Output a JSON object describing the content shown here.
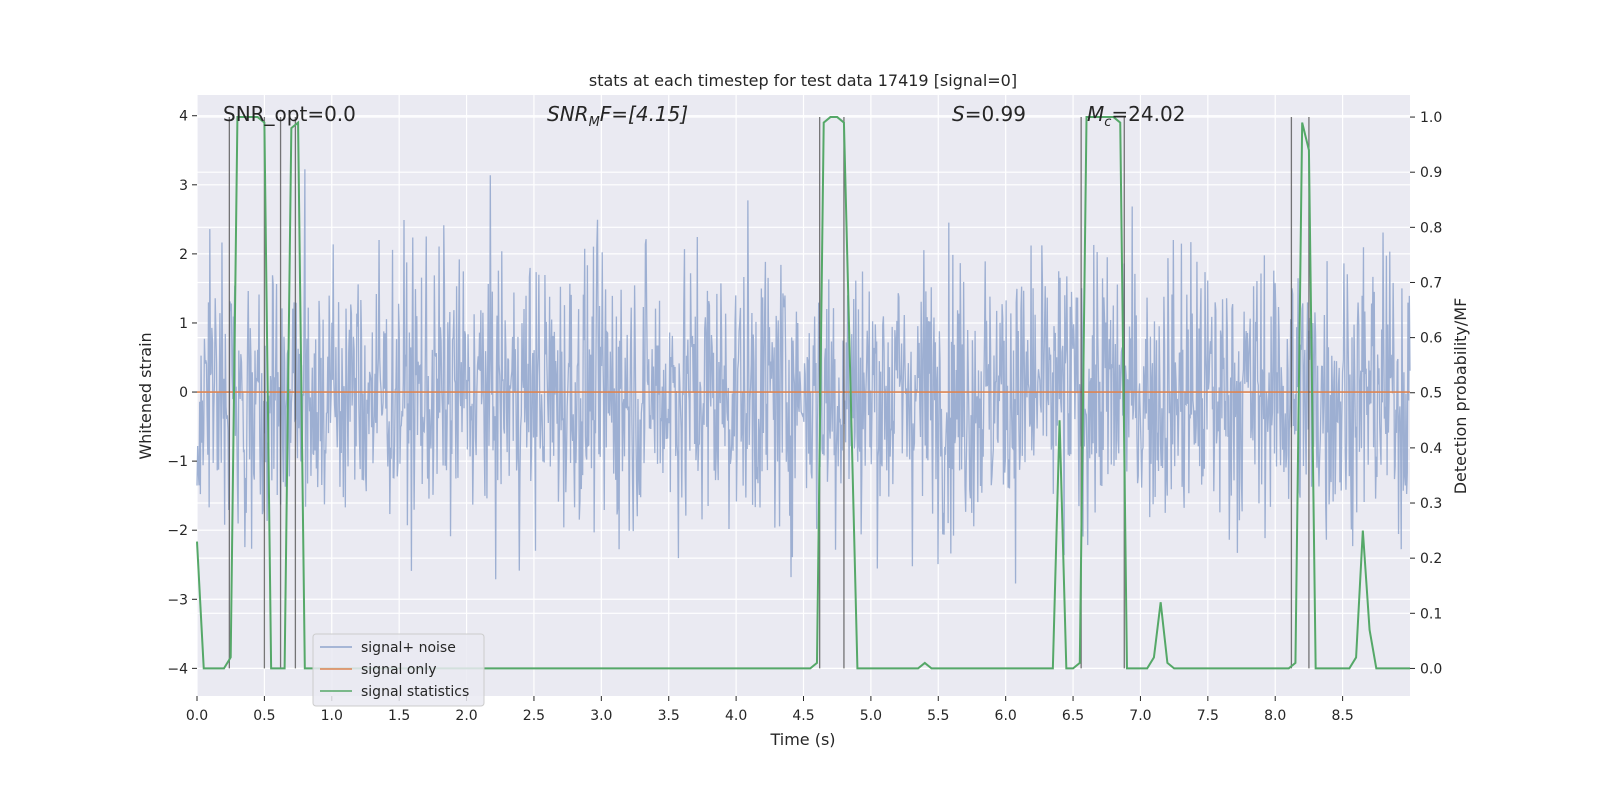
{
  "chart_data": {
    "type": "line",
    "title": "stats at each timestep for test data 17419 [signal=0]",
    "xlabel": "Time (s)",
    "ylabel": "Whitened strain",
    "ylabel_right": "Detection probability/MF",
    "xlim": [
      0.0,
      9.0
    ],
    "ylim": [
      -4.4,
      4.3
    ],
    "ylim_right": [
      -0.05,
      1.04
    ],
    "x_ticks": [
      0.0,
      0.5,
      1.0,
      1.5,
      2.0,
      2.5,
      3.0,
      3.5,
      4.0,
      4.5,
      5.0,
      5.5,
      6.0,
      6.5,
      7.0,
      7.5,
      8.0,
      8.5
    ],
    "x_tick_labels": [
      "0.0",
      "0.5",
      "1.0",
      "1.5",
      "2.0",
      "2.5",
      "3.0",
      "3.5",
      "4.0",
      "4.5",
      "5.0",
      "5.5",
      "6.0",
      "6.5",
      "7.0",
      "7.5",
      "8.0",
      "8.5"
    ],
    "y_ticks": [
      -4,
      -3,
      -2,
      -1,
      0,
      1,
      2,
      3,
      4
    ],
    "y_tick_labels": [
      "−4",
      "−3",
      "−2",
      "−1",
      "0",
      "1",
      "2",
      "3",
      "4"
    ],
    "y_ticks_right": [
      0.0,
      0.1,
      0.2,
      0.3,
      0.4,
      0.5,
      0.6,
      0.7,
      0.8,
      0.9,
      1.0
    ],
    "y_tick_labels_right": [
      "0.0",
      "0.1",
      "0.2",
      "0.3",
      "0.4",
      "0.5",
      "0.6",
      "0.7",
      "0.8",
      "0.9",
      "1.0"
    ],
    "grid": true,
    "legend_position": "lower-left",
    "annotations": {
      "snr_opt": "SNR_opt=0.0",
      "snr_mf_base": "SNR",
      "snr_mf_sub": "M",
      "snr_mf_rest": "F=[4.15]",
      "s_label": "S",
      "s_rest": "=0.99",
      "mc_label": "M",
      "mc_sub": "c",
      "mc_rest": "=24.02"
    },
    "series": [
      {
        "name": "signal+ noise",
        "color": "#8fa4cc",
        "kind": "noise",
        "n_samples": 1800,
        "typical_envelope": [
          -2.0,
          2.0
        ],
        "max": 3.9,
        "min": -3.6
      },
      {
        "name": "signal only",
        "color": "#dd8452",
        "kind": "flat",
        "value": 0.0
      },
      {
        "name": "signal statistics",
        "color": "#55a868",
        "axis": "right",
        "x": [
          0.0,
          0.05,
          0.1,
          0.15,
          0.2,
          0.25,
          0.3,
          0.35,
          0.4,
          0.45,
          0.5,
          0.55,
          0.6,
          0.65,
          0.7,
          0.75,
          0.8,
          0.85,
          0.9,
          1.0,
          2.0,
          3.0,
          4.0,
          4.5,
          4.55,
          4.6,
          4.65,
          4.7,
          4.75,
          4.8,
          4.85,
          4.9,
          4.95,
          5.0,
          5.2,
          5.35,
          5.4,
          5.45,
          5.5,
          5.6,
          6.0,
          6.3,
          6.35,
          6.4,
          6.45,
          6.5,
          6.55,
          6.6,
          6.65,
          6.7,
          6.75,
          6.8,
          6.85,
          6.9,
          6.95,
          7.0,
          7.05,
          7.1,
          7.15,
          7.2,
          7.25,
          7.3,
          7.5,
          8.0,
          8.1,
          8.15,
          8.2,
          8.25,
          8.3,
          8.35,
          8.4,
          8.45,
          8.5,
          8.55,
          8.6,
          8.65,
          8.7,
          8.75,
          8.8,
          8.9,
          9.0
        ],
        "values": [
          0.23,
          0.0,
          0.0,
          0.0,
          0.0,
          0.02,
          1.0,
          1.0,
          1.0,
          1.0,
          0.99,
          0.0,
          0.0,
          0.0,
          0.98,
          0.99,
          0.0,
          0.0,
          0.0,
          0.0,
          0.0,
          0.0,
          0.0,
          0.0,
          0.0,
          0.01,
          0.99,
          1.0,
          1.0,
          0.99,
          0.5,
          0.0,
          0.0,
          0.0,
          0.0,
          0.0,
          0.01,
          0.0,
          0.0,
          0.0,
          0.0,
          0.0,
          0.0,
          0.45,
          0.0,
          0.0,
          0.01,
          1.0,
          1.0,
          1.0,
          1.0,
          1.0,
          0.99,
          0.0,
          0.0,
          0.0,
          0.0,
          0.02,
          0.12,
          0.01,
          0.0,
          0.0,
          0.0,
          0.0,
          0.0,
          0.01,
          0.99,
          0.94,
          0.0,
          0.0,
          0.0,
          0.0,
          0.0,
          0.0,
          0.02,
          0.25,
          0.07,
          0.0,
          0.0,
          0.0,
          0.0
        ]
      }
    ],
    "vertical_markers": [
      0.24,
      0.5,
      0.62,
      0.73,
      4.62,
      4.8,
      6.56,
      6.88,
      8.12,
      8.25
    ]
  }
}
